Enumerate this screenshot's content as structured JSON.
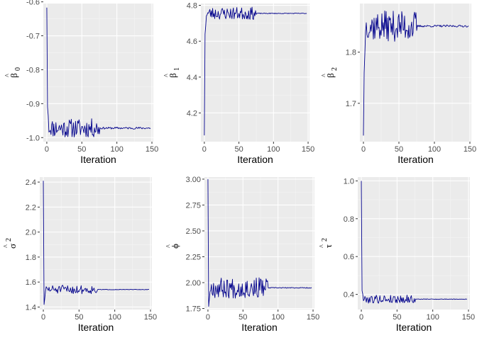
{
  "theme": {
    "panel_bg": "#ebebeb",
    "grid_major": "#ffffff",
    "grid_minor": "#f5f5f5",
    "line_color": "#00008b"
  },
  "chart_data": [
    {
      "type": "line",
      "title": "",
      "xlabel": "Iteration",
      "ylabel": {
        "main": "β",
        "sub": "0",
        "accent": "^"
      },
      "xlim": [
        -5,
        152
      ],
      "ylim": [
        -1.012,
        -0.605
      ],
      "xticks": [
        0,
        50,
        100,
        150
      ],
      "xtick_labels": [
        "0",
        "50",
        "100",
        "150"
      ],
      "yticks": [
        -0.6,
        -0.7,
        -0.8,
        -0.9,
        -1.0
      ],
      "ytick_labels": [
        "-0.6",
        "-0.7",
        "-0.8",
        "-0.9",
        "-1.0"
      ],
      "grid": true,
      "trace": {
        "start": -0.617,
        "drop_to": -0.91,
        "settle": -0.972,
        "mix_noise": 0.028,
        "mix_until": 75,
        "tail_noise": 0.003,
        "n": 148,
        "seed": 11
      }
    },
    {
      "type": "line",
      "title": "",
      "xlabel": "Iteration",
      "ylabel": {
        "main": "β",
        "sub": "1",
        "accent": "^"
      },
      "xlim": [
        -5,
        152
      ],
      "ylim": [
        4.04,
        4.81
      ],
      "xticks": [
        0,
        50,
        100,
        150
      ],
      "xtick_labels": [
        "0",
        "50",
        "100",
        "150"
      ],
      "yticks": [
        4.2,
        4.4,
        4.6,
        4.8
      ],
      "ytick_labels": [
        "4.2",
        "4.4",
        "4.6",
        "4.8"
      ],
      "grid": true,
      "trace": {
        "start": 4.075,
        "drop_to": 4.64,
        "settle": 4.755,
        "mix_noise": 0.035,
        "mix_until": 75,
        "tail_noise": 0.002,
        "n": 148,
        "seed": 23
      }
    },
    {
      "type": "line",
      "title": "",
      "xlabel": "Iteration",
      "ylabel": {
        "main": "β",
        "sub": "2",
        "accent": "^"
      },
      "xlim": [
        -5,
        152
      ],
      "ylim": [
        1.625,
        1.895
      ],
      "xticks": [
        0,
        50,
        100,
        150
      ],
      "xtick_labels": [
        "0",
        "50",
        "100",
        "150"
      ],
      "yticks": [
        1.7,
        1.8
      ],
      "ytick_labels": [
        "1.7",
        "1.8"
      ],
      "grid": true,
      "trace": {
        "start": 1.637,
        "drop_to": 1.76,
        "settle": 1.851,
        "mix_noise": 0.03,
        "mix_until": 75,
        "tail_noise": 0.002,
        "n": 148,
        "seed": 37
      }
    },
    {
      "type": "line",
      "title": "",
      "xlabel": "Iteration",
      "ylabel": {
        "main": "σ",
        "sup": "2",
        "accent": "^"
      },
      "xlim": [
        -5,
        152
      ],
      "ylim": [
        1.38,
        2.44
      ],
      "xticks": [
        0,
        50,
        100,
        150
      ],
      "xtick_labels": [
        "0",
        "50",
        "100",
        "150"
      ],
      "yticks": [
        1.4,
        1.6,
        1.8,
        2.0,
        2.2,
        2.4
      ],
      "ytick_labels": [
        "1.4",
        "1.6",
        "1.8",
        "2.0",
        "2.2",
        "2.4"
      ],
      "grid": true,
      "trace": {
        "start": 2.41,
        "drop_to": 1.42,
        "settle": 1.54,
        "mix_noise": 0.035,
        "mix_until": 75,
        "tail_noise": 0.002,
        "n": 148,
        "seed": 51
      }
    },
    {
      "type": "line",
      "title": "",
      "xlabel": "Iteration",
      "ylabel": {
        "main": "ϕ",
        "accent": "^"
      },
      "xlim": [
        -5,
        152
      ],
      "ylim": [
        1.74,
        3.02
      ],
      "xticks": [
        0,
        50,
        100,
        150
      ],
      "xtick_labels": [
        "0",
        "50",
        "100",
        "150"
      ],
      "yticks": [
        1.75,
        2.0,
        2.25,
        2.5,
        2.75,
        3.0
      ],
      "ytick_labels": [
        "1.75",
        "2.00",
        "2.25",
        "2.50",
        "2.75",
        "3.00"
      ],
      "grid": true,
      "trace": {
        "start": 3.0,
        "drop_to": 1.77,
        "settle": 1.95,
        "mix_noise": 0.1,
        "mix_until": 85,
        "tail_noise": 0.004,
        "n": 148,
        "seed": 67
      }
    },
    {
      "type": "line",
      "title": "",
      "xlabel": "Iteration",
      "ylabel": {
        "main": "τ",
        "sup": "2",
        "accent": "^"
      },
      "xlim": [
        -5,
        152
      ],
      "ylim": [
        0.32,
        1.02
      ],
      "xticks": [
        0,
        50,
        100,
        150
      ],
      "xtick_labels": [
        "0",
        "50",
        "100",
        "150"
      ],
      "yticks": [
        0.4,
        0.6,
        0.8,
        1.0
      ],
      "ytick_labels": [
        "0.4",
        "0.6",
        "0.8",
        "1.0"
      ],
      "grid": true,
      "trace": {
        "start": 1.0,
        "drop_to": 0.42,
        "settle": 0.375,
        "mix_noise": 0.022,
        "mix_until": 75,
        "tail_noise": 0.0015,
        "n": 148,
        "seed": 79
      }
    }
  ]
}
